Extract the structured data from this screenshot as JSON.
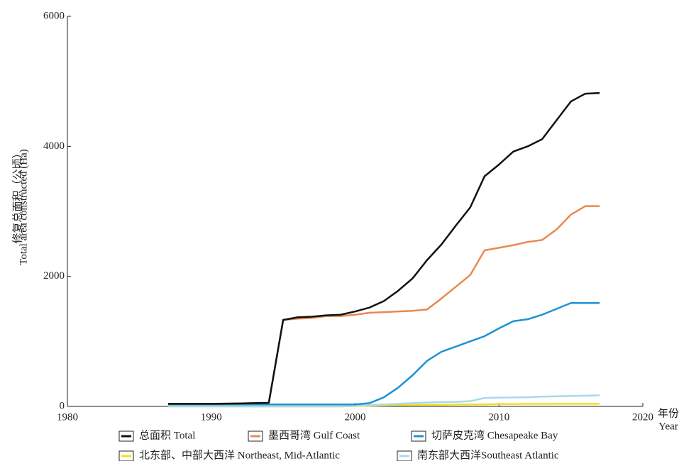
{
  "chart_data": {
    "type": "line",
    "ylabel": [
      "修复总面积（公顷）",
      "Total area constructed (Ha)"
    ],
    "xlabel": [
      "年份",
      "Year"
    ],
    "x": [
      1987,
      1988,
      1989,
      1990,
      1991,
      1992,
      1993,
      1994,
      1995,
      1996,
      1997,
      1998,
      1999,
      2000,
      2001,
      2002,
      2003,
      2004,
      2005,
      2006,
      2007,
      2008,
      2009,
      2010,
      2011,
      2012,
      2013,
      2014,
      2015,
      2016,
      2017
    ],
    "series": [
      {
        "name": "总面积 Total",
        "color": "#111111",
        "values": [
          40,
          40,
          40,
          40,
          42,
          45,
          50,
          55,
          1330,
          1370,
          1380,
          1400,
          1410,
          1460,
          1520,
          1620,
          1780,
          1970,
          2250,
          2490,
          2780,
          3060,
          3540,
          3720,
          3920,
          4000,
          4110,
          4400,
          4690,
          4810,
          4820
        ]
      },
      {
        "name": "墨西哥湾 Gulf Coast",
        "color": "#e8894f",
        "values": [
          40,
          40,
          40,
          40,
          42,
          45,
          50,
          55,
          1330,
          1350,
          1360,
          1390,
          1390,
          1410,
          1440,
          1450,
          1460,
          1470,
          1490,
          1660,
          1840,
          2020,
          2400,
          2440,
          2480,
          2530,
          2560,
          2720,
          2950,
          3080,
          3080
        ]
      },
      {
        "name": "切萨皮克湾  Chesapeake Bay",
        "color": "#1b93d2",
        "values": [
          30,
          30,
          30,
          30,
          30,
          30,
          30,
          30,
          30,
          30,
          30,
          30,
          30,
          30,
          50,
          140,
          290,
          480,
          700,
          840,
          920,
          1000,
          1080,
          1200,
          1310,
          1340,
          1410,
          1500,
          1590,
          1590,
          1590
        ]
      },
      {
        "name": "北东部、中部大西洋  Northeast, Mid-Atlantic",
        "color": "#f2e21c",
        "values": [
          0,
          0,
          0,
          0,
          0,
          0,
          0,
          0,
          0,
          0,
          0,
          0,
          0,
          5,
          10,
          15,
          20,
          22,
          25,
          25,
          28,
          30,
          32,
          35,
          36,
          38,
          38,
          40,
          40,
          40,
          40
        ]
      },
      {
        "name": "南东部大西洋Southeast Atlantic",
        "color": "#a8d8f0",
        "values": [
          0,
          0,
          0,
          0,
          0,
          0,
          0,
          0,
          0,
          0,
          0,
          0,
          0,
          10,
          20,
          30,
          40,
          50,
          60,
          65,
          70,
          80,
          130,
          135,
          138,
          140,
          150,
          155,
          160,
          165,
          170
        ]
      }
    ],
    "xlim": [
      1980,
      2020
    ],
    "xticks": [
      1980,
      1990,
      2000,
      2010,
      2020
    ],
    "ylim": [
      0,
      6000
    ],
    "yticks": [
      0,
      2000,
      4000,
      6000
    ],
    "grid": false
  }
}
